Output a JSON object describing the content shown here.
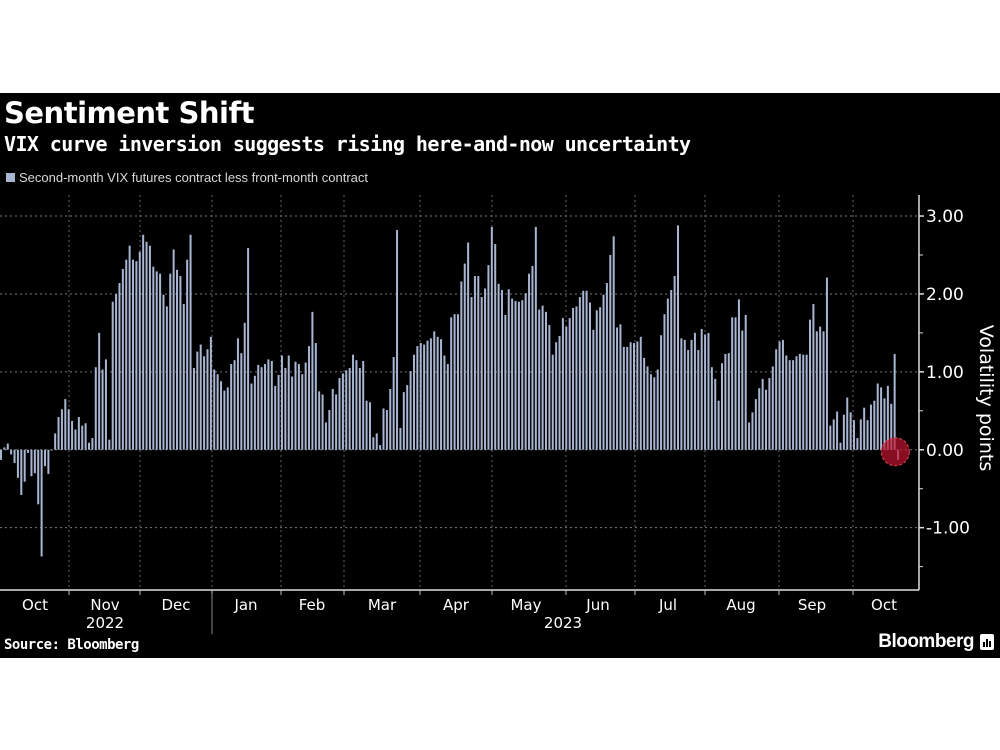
{
  "title": "Sentiment Shift",
  "subtitle": "VIX curve inversion suggests rising here-and-now uncertainty",
  "source": "Source: Bloomberg",
  "brand": "Bloomberg",
  "colors": {
    "bar": "#a9b6d3",
    "background": "#000000",
    "highlight": "#c0142d"
  },
  "chart_data": {
    "type": "bar",
    "title": "Sentiment Shift",
    "subtitle": "VIX curve inversion suggests rising here-and-now uncertainty",
    "series": [
      {
        "name": "Second-month VIX futures contract less front-month contract"
      }
    ],
    "ylabel": "Volatility points",
    "xlabel": "",
    "ylim": [
      -1.8,
      3.27
    ],
    "y_ticks": [
      "3.00",
      "2.00",
      "1.00",
      "0.00",
      "-1.00"
    ],
    "y_tick_values": [
      3,
      2,
      1,
      0,
      -1
    ],
    "x_month_labels": [
      "Oct",
      "Nov",
      "Dec",
      "Jan",
      "Feb",
      "Mar",
      "Apr",
      "May",
      "Jun",
      "Jul",
      "Aug",
      "Sep",
      "Oct"
    ],
    "x_year_labels": [
      "2022",
      "2023"
    ],
    "grid": true,
    "legend_position": "top-left",
    "highlight": "last point circled in red",
    "values": [
      -0.13,
      0.03,
      0.08,
      -0.06,
      -0.17,
      -0.36,
      -0.58,
      -0.41,
      -0.04,
      -0.34,
      -0.3,
      -0.7,
      -1.37,
      -0.21,
      -0.31,
      -0.01,
      0.21,
      0.42,
      0.52,
      0.65,
      0.52,
      0.37,
      0.26,
      0.42,
      0.31,
      0.34,
      0.09,
      0.15,
      1.06,
      1.5,
      1.03,
      1.16,
      0.13,
      1.9,
      2.0,
      2.14,
      2.32,
      2.44,
      2.62,
      2.44,
      2.42,
      2.54,
      2.76,
      2.67,
      2.62,
      2.35,
      2.29,
      2.26,
      1.99,
      1.84,
      2.26,
      2.57,
      2.31,
      2.23,
      1.87,
      2.44,
      2.76,
      1.05,
      1.26,
      1.35,
      1.2,
      1.29,
      1.45,
      1.03,
      0.97,
      0.88,
      0.76,
      0.8,
      1.1,
      1.15,
      1.43,
      1.24,
      1.63,
      2.59,
      0.85,
      0.95,
      1.09,
      1.06,
      1.1,
      1.16,
      1.14,
      0.82,
      0.96,
      1.21,
      1.05,
      1.21,
      0.94,
      1.13,
      1.1,
      0.97,
      1.12,
      1.33,
      1.77,
      1.37,
      0.75,
      0.71,
      0.35,
      0.51,
      0.78,
      0.71,
      0.92,
      0.98,
      1.02,
      1.05,
      1.22,
      1.15,
      1.05,
      1.14,
      0.63,
      0.61,
      0.16,
      0.21,
      0.06,
      0.53,
      0.51,
      0.78,
      1.19,
      2.82,
      0.28,
      0.74,
      0.83,
      1.01,
      1.22,
      1.33,
      1.37,
      1.35,
      1.4,
      1.43,
      1.52,
      1.45,
      1.42,
      1.21,
      1.1,
      1.7,
      1.74,
      1.74,
      2.16,
      2.39,
      2.66,
      1.96,
      2.23,
      2.23,
      1.96,
      2.07,
      2.37,
      2.86,
      2.64,
      2.13,
      2.05,
      1.73,
      2.06,
      1.94,
      1.91,
      1.9,
      1.92,
      2.01,
      2.26,
      2.36,
      2.86,
      1.8,
      1.85,
      1.77,
      1.6,
      1.22,
      1.38,
      1.46,
      1.69,
      1.58,
      1.69,
      1.82,
      1.84,
      1.96,
      2.04,
      2.04,
      1.89,
      1.54,
      1.79,
      1.83,
      1.99,
      2.14,
      2.5,
      2.74,
      1.57,
      1.61,
      1.32,
      1.32,
      1.38,
      1.37,
      1.39,
      1.45,
      1.18,
      1.07,
      0.97,
      0.93,
      1.03,
      1.47,
      1.74,
      1.94,
      2.05,
      2.23,
      2.88,
      1.43,
      1.41,
      1.28,
      1.41,
      1.5,
      1.28,
      1.55,
      1.48,
      1.5,
      1.06,
      0.91,
      0.63,
      1.11,
      1.23,
      1.24,
      1.7,
      1.7,
      1.93,
      1.53,
      1.73,
      0.35,
      0.48,
      0.65,
      0.79,
      0.91,
      0.77,
      0.92,
      1.07,
      1.29,
      1.39,
      1.41,
      1.21,
      1.15,
      1.15,
      1.2,
      1.23,
      1.22,
      1.22,
      1.67,
      1.87,
      1.52,
      1.58,
      1.52,
      2.21,
      0.31,
      0.39,
      0.49,
      0.09,
      0.45,
      0.67,
      0.48,
      0.38,
      0.15,
      0.39,
      0.54,
      0.38,
      0.58,
      0.63,
      0.85,
      0.8,
      0.66,
      0.82,
      0.59,
      1.23,
      -0.13
    ]
  }
}
